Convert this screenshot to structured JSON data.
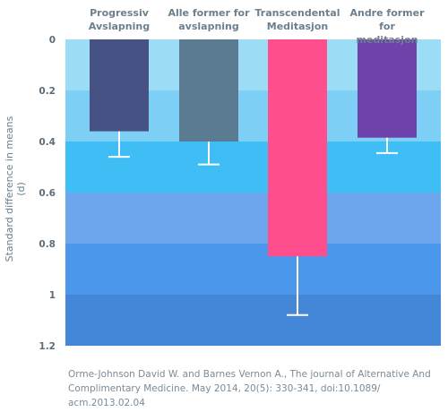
{
  "chart_data": {
    "type": "bar",
    "categories": [
      "Progressiv Avslapning",
      "Alle former for avslapning",
      "Transcendental Meditasjon",
      "Andre former for meditasjon"
    ],
    "category_lines": [
      [
        "Progressiv",
        "Avslapning"
      ],
      [
        "Alle former for",
        "avslapning"
      ],
      [
        "Transcendental",
        "Meditasjon"
      ],
      [
        "Andre former for",
        "meditasjon"
      ]
    ],
    "values": [
      0.36,
      0.4,
      0.85,
      0.385
    ],
    "error_upper": [
      0.46,
      0.49,
      1.08,
      0.445
    ],
    "bar_colors": [
      "#465283",
      "#5b7b92",
      "#ff4e8e",
      "#6f41aa"
    ],
    "ylabel": "Standard difference in means (d)",
    "yticks": [
      "0",
      "0.2",
      "0.4",
      "0.6",
      "0.8",
      "1",
      "1.2"
    ],
    "ylim": [
      0,
      1.2
    ],
    "y_inverted": true,
    "band_colors": [
      "#9ddcf5",
      "#7dcff5",
      "#3fbef5",
      "#6ea6ee",
      "#4b97ec",
      "#4487d9"
    ],
    "source": "Orme-Johnson David W. and Barnes Vernon A., The journal of Alternative And Complimentary Medicine.  May 2014, 20(5): 330-341, doi:10.1089/ acm.2013.02.04"
  }
}
